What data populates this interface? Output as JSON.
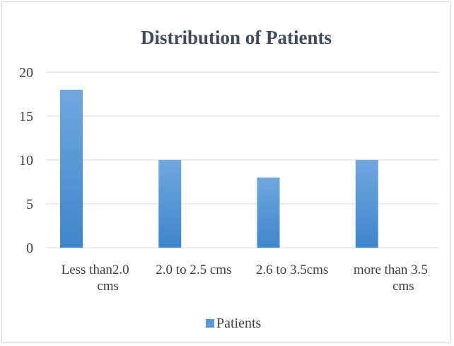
{
  "chart_data": {
    "type": "bar",
    "title": "Distribution of Patients",
    "xlabel": "",
    "ylabel": "",
    "categories": [
      [
        "Less than2.0",
        "cms"
      ],
      [
        "2.0 to 2.5 cms"
      ],
      [
        "2.6 to 3.5cms"
      ],
      [
        "more than 3.5",
        "cms"
      ]
    ],
    "series": [
      {
        "name": "Patients",
        "values": [
          18,
          10,
          8,
          10
        ],
        "color": "#5b9bd5"
      }
    ],
    "ylim": [
      0,
      20
    ],
    "yticks": [
      0,
      5,
      10,
      15,
      20
    ],
    "grid": true,
    "legend_position": "bottom"
  }
}
